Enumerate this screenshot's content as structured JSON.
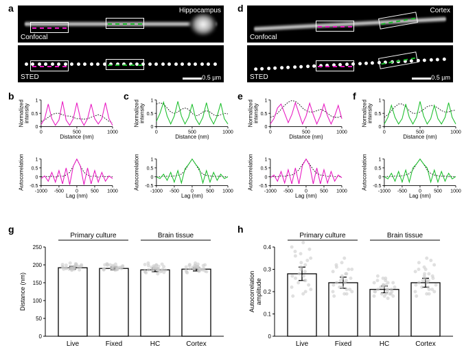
{
  "colors": {
    "magenta": "#e815c1",
    "green": "#1abe2a",
    "dashed": "#000000",
    "box_stroke": "#ffffff"
  },
  "panels": {
    "a": {
      "label": "a",
      "region": "Hippocampus",
      "modes": [
        "Confocal",
        "STED"
      ],
      "scale": "0.5 µm"
    },
    "d": {
      "label": "d",
      "region": "Cortex",
      "modes": [
        "Confocal",
        "STED"
      ],
      "scale": "0.5 µm"
    },
    "b": {
      "label": "b"
    },
    "c": {
      "label": "c"
    },
    "e": {
      "label": "e"
    },
    "f": {
      "label": "f"
    },
    "g": {
      "label": "g"
    },
    "h": {
      "label": "h"
    }
  },
  "profiles": {
    "b_top": {
      "color": "magenta",
      "xlabel": "Distance (nm)",
      "ylabel": "Normalized\nintensity",
      "xticks": [
        0,
        500,
        1000
      ],
      "yticks": [
        0,
        0.5,
        1.0
      ],
      "solid": [
        0.08,
        0.3,
        0.85,
        0.3,
        0.05,
        0.25,
        0.95,
        0.25,
        0.05,
        0.3,
        0.9,
        0.3,
        0.05,
        0.3,
        0.85,
        0.3,
        0.1,
        0.3,
        0.9,
        0.3,
        0.05
      ],
      "dash": [
        0.2,
        0.25,
        0.35,
        0.45,
        0.5,
        0.5,
        0.45,
        0.4,
        0.4,
        0.35,
        0.3,
        0.3,
        0.28,
        0.3,
        0.35,
        0.4,
        0.45,
        0.4,
        0.3,
        0.2,
        0.15
      ]
    },
    "c_top": {
      "color": "green",
      "xlabel": "Distance (nm)",
      "ylabel": "Normalized\nintensity",
      "xticks": [
        0,
        500,
        1000
      ],
      "yticks": [
        0,
        0.5,
        1.0
      ],
      "solid": [
        0.2,
        0.5,
        0.92,
        0.4,
        0.1,
        0.4,
        0.95,
        0.4,
        0.1,
        0.35,
        0.85,
        0.3,
        0.08,
        0.35,
        0.9,
        0.35,
        0.1,
        0.4,
        0.88,
        0.3,
        0.1
      ],
      "dash": [
        0.85,
        0.9,
        0.85,
        0.7,
        0.55,
        0.5,
        0.55,
        0.65,
        0.7,
        0.65,
        0.5,
        0.4,
        0.45,
        0.55,
        0.6,
        0.55,
        0.45,
        0.4,
        0.45,
        0.5,
        0.48
      ]
    },
    "e_top": {
      "color": "magenta",
      "xlabel": "Distance (nm)",
      "ylabel": "Normalized\nintensity",
      "xticks": [
        0,
        500,
        1000
      ],
      "yticks": [
        0,
        0.5,
        1.0
      ],
      "solid": [
        0.1,
        0.3,
        0.7,
        0.85,
        0.5,
        0.15,
        0.45,
        0.9,
        0.5,
        0.1,
        0.4,
        0.88,
        0.45,
        0.1,
        0.4,
        0.85,
        0.4,
        0.1,
        0.4,
        0.8,
        0.3
      ],
      "dash": [
        0.35,
        0.4,
        0.5,
        0.65,
        0.8,
        0.92,
        0.98,
        0.95,
        0.85,
        0.7,
        0.6,
        0.55,
        0.55,
        0.6,
        0.65,
        0.6,
        0.5,
        0.4,
        0.35,
        0.35,
        0.4
      ]
    },
    "f_top": {
      "color": "green",
      "xlabel": "Distance (nm)",
      "ylabel": "Normalized\nintensity",
      "xticks": [
        0,
        500,
        1000
      ],
      "yticks": [
        0,
        0.5,
        1.0
      ],
      "solid": [
        0.1,
        0.35,
        0.8,
        0.35,
        0.1,
        0.3,
        0.85,
        0.35,
        0.1,
        0.35,
        0.95,
        0.4,
        0.1,
        0.3,
        0.8,
        0.3,
        0.1,
        0.35,
        0.9,
        0.35,
        0.1
      ],
      "dash": [
        0.35,
        0.45,
        0.6,
        0.75,
        0.85,
        0.85,
        0.75,
        0.6,
        0.5,
        0.5,
        0.55,
        0.65,
        0.75,
        0.8,
        0.78,
        0.7,
        0.6,
        0.55,
        0.55,
        0.6,
        0.62
      ]
    },
    "b_bot": {
      "color": "magenta",
      "xlabel": "Lag (nm)",
      "ylabel": "Autocorrelation",
      "xticks": [
        -1000,
        -500,
        0,
        500,
        1000
      ],
      "yticks": [
        -0.5,
        0,
        0.5,
        1.0
      ],
      "solid": [
        -0.1,
        0.05,
        -0.25,
        0.25,
        -0.3,
        0.35,
        -0.4,
        0.5,
        -0.45,
        0.6,
        1.0,
        0.6,
        -0.45,
        0.5,
        -0.4,
        0.35,
        -0.3,
        0.25,
        -0.25,
        0.05,
        -0.1
      ],
      "dash": [
        0,
        0.02,
        0.01,
        0.03,
        -0.02,
        0.05,
        0.02,
        0.1,
        0.25,
        0.6,
        1.0,
        0.6,
        0.25,
        0.1,
        0.02,
        0.05,
        -0.02,
        0.03,
        0.01,
        0.02,
        0
      ]
    },
    "c_bot": {
      "color": "green",
      "xlabel": "Lag (nm)",
      "ylabel": "Autocorrelation",
      "xticks": [
        -1000,
        -500,
        0,
        500,
        1000
      ],
      "yticks": [
        -0.5,
        0,
        0.5,
        1.0
      ],
      "solid": [
        0,
        -0.1,
        0.15,
        -0.2,
        0.25,
        -0.3,
        0.35,
        -0.35,
        0.45,
        0.7,
        1.0,
        0.7,
        0.45,
        -0.35,
        0.35,
        -0.3,
        0.25,
        -0.2,
        0.15,
        -0.1,
        0
      ],
      "dash": [
        0,
        0.01,
        0.02,
        0.03,
        0.02,
        0.05,
        0.08,
        0.15,
        0.35,
        0.7,
        1.0,
        0.7,
        0.35,
        0.15,
        0.08,
        0.05,
        0.02,
        0.03,
        0.02,
        0.01,
        0
      ]
    },
    "e_bot": {
      "color": "magenta",
      "xlabel": "Lag (nm)",
      "ylabel": "Autocorrelation",
      "xticks": [
        -1000,
        -500,
        0,
        500,
        1000
      ],
      "yticks": [
        -0.5,
        0,
        0.5,
        1.0
      ],
      "solid": [
        -0.05,
        0.1,
        -0.25,
        0.3,
        -0.35,
        0.4,
        -0.4,
        0.5,
        -0.4,
        0.65,
        1.0,
        0.65,
        -0.4,
        0.5,
        -0.4,
        0.4,
        -0.35,
        0.3,
        -0.25,
        0.1,
        -0.05
      ],
      "dash": [
        -0.02,
        0.02,
        0.01,
        0.05,
        0.02,
        0.08,
        0.1,
        0.2,
        0.4,
        0.7,
        1.0,
        0.7,
        0.4,
        0.2,
        0.1,
        0.08,
        0.02,
        0.05,
        0.01,
        0.02,
        -0.02
      ]
    },
    "f_bot": {
      "color": "green",
      "xlabel": "Lag (nm)",
      "ylabel": "Autocorrelation",
      "xticks": [
        -1000,
        -500,
        0,
        500,
        1000
      ],
      "yticks": [
        -0.5,
        0,
        0.5,
        1.0
      ],
      "solid": [
        0.02,
        -0.12,
        0.2,
        -0.25,
        0.3,
        -0.3,
        0.38,
        -0.3,
        0.5,
        0.72,
        1.0,
        0.72,
        0.5,
        -0.3,
        0.38,
        -0.3,
        0.3,
        -0.25,
        0.2,
        -0.12,
        0.02
      ],
      "dash": [
        0,
        0.02,
        0.01,
        0.04,
        0.03,
        0.06,
        0.1,
        0.18,
        0.38,
        0.72,
        1.0,
        0.72,
        0.38,
        0.18,
        0.1,
        0.06,
        0.03,
        0.04,
        0.01,
        0.02,
        0
      ]
    }
  },
  "bars": {
    "g": {
      "ylabel": "Distance (nm)",
      "yticks": [
        0,
        50,
        100,
        150,
        200,
        250
      ],
      "groups": [
        {
          "label": "Live",
          "header": "Primary culture",
          "mean": 192,
          "err": 4,
          "pts": [
            195,
            200,
            188,
            192,
            205,
            185,
            198,
            190,
            202,
            187,
            193,
            199,
            186,
            201,
            191,
            194,
            197,
            189,
            203,
            188,
            196,
            192,
            200,
            187,
            195,
            198
          ]
        },
        {
          "label": "Fixed",
          "header": "",
          "mean": 190,
          "err": 4,
          "pts": [
            188,
            195,
            200,
            185,
            192,
            198,
            187,
            203,
            190,
            196,
            189,
            201,
            193,
            186,
            199,
            191,
            197,
            188,
            194,
            200,
            192,
            195,
            189,
            202,
            190,
            187
          ]
        },
        {
          "label": "HC",
          "header": "Brain tissue",
          "mean": 186,
          "err": 5,
          "pts": [
            182,
            195,
            178,
            200,
            185,
            190,
            175,
            205,
            188,
            192,
            180,
            198,
            183,
            201,
            186,
            194,
            179,
            197,
            189,
            193,
            181,
            199,
            184,
            191,
            187,
            196,
            190,
            185,
            202,
            188
          ]
        },
        {
          "label": "Cortex",
          "header": "",
          "mean": 188,
          "err": 5,
          "pts": [
            185,
            200,
            178,
            195,
            190,
            205,
            182,
            198,
            188,
            192,
            180,
            201,
            186,
            194,
            189,
            197,
            183,
            199,
            191,
            193,
            187,
            196,
            184,
            202,
            190,
            188,
            195,
            181,
            198,
            192
          ]
        }
      ]
    },
    "h": {
      "ylabel": "Autocorrelation\namplitude",
      "yticks": [
        0,
        0.1,
        0.2,
        0.3,
        0.4
      ],
      "groups": [
        {
          "label": "Live",
          "header": "Primary culture",
          "mean": 0.28,
          "err": 0.03,
          "pts": [
            0.22,
            0.35,
            0.18,
            0.42,
            0.28,
            0.31,
            0.25,
            0.38,
            0.2,
            0.33,
            0.27,
            0.36,
            0.23,
            0.4,
            0.26,
            0.3,
            0.21,
            0.37,
            0.29,
            0.24,
            0.34,
            0.19,
            0.32,
            0.27,
            0.39,
            0.25
          ]
        },
        {
          "label": "Fixed",
          "header": "",
          "mean": 0.24,
          "err": 0.025,
          "pts": [
            0.2,
            0.3,
            0.18,
            0.35,
            0.25,
            0.22,
            0.28,
            0.32,
            0.19,
            0.26,
            0.23,
            0.31,
            0.21,
            0.29,
            0.24,
            0.27,
            0.2,
            0.33,
            0.25,
            0.22,
            0.3,
            0.19,
            0.28,
            0.24,
            0.26,
            0.21
          ]
        },
        {
          "label": "HC",
          "header": "Brain tissue",
          "mean": 0.21,
          "err": 0.015,
          "pts": [
            0.18,
            0.24,
            0.2,
            0.26,
            0.19,
            0.23,
            0.21,
            0.25,
            0.17,
            0.22,
            0.2,
            0.27,
            0.19,
            0.24,
            0.21,
            0.23,
            0.18,
            0.26,
            0.2,
            0.22,
            0.19,
            0.25,
            0.21,
            0.23,
            0.2,
            0.24,
            0.18,
            0.22,
            0.21,
            0.19
          ]
        },
        {
          "label": "Cortex",
          "header": "",
          "mean": 0.24,
          "err": 0.02,
          "pts": [
            0.2,
            0.32,
            0.18,
            0.35,
            0.25,
            0.28,
            0.22,
            0.3,
            0.19,
            0.26,
            0.23,
            0.33,
            0.21,
            0.29,
            0.24,
            0.27,
            0.2,
            0.31,
            0.25,
            0.22,
            0.34,
            0.19,
            0.28,
            0.24,
            0.26,
            0.21,
            0.3,
            0.23,
            0.27,
            0.25
          ]
        }
      ]
    }
  }
}
